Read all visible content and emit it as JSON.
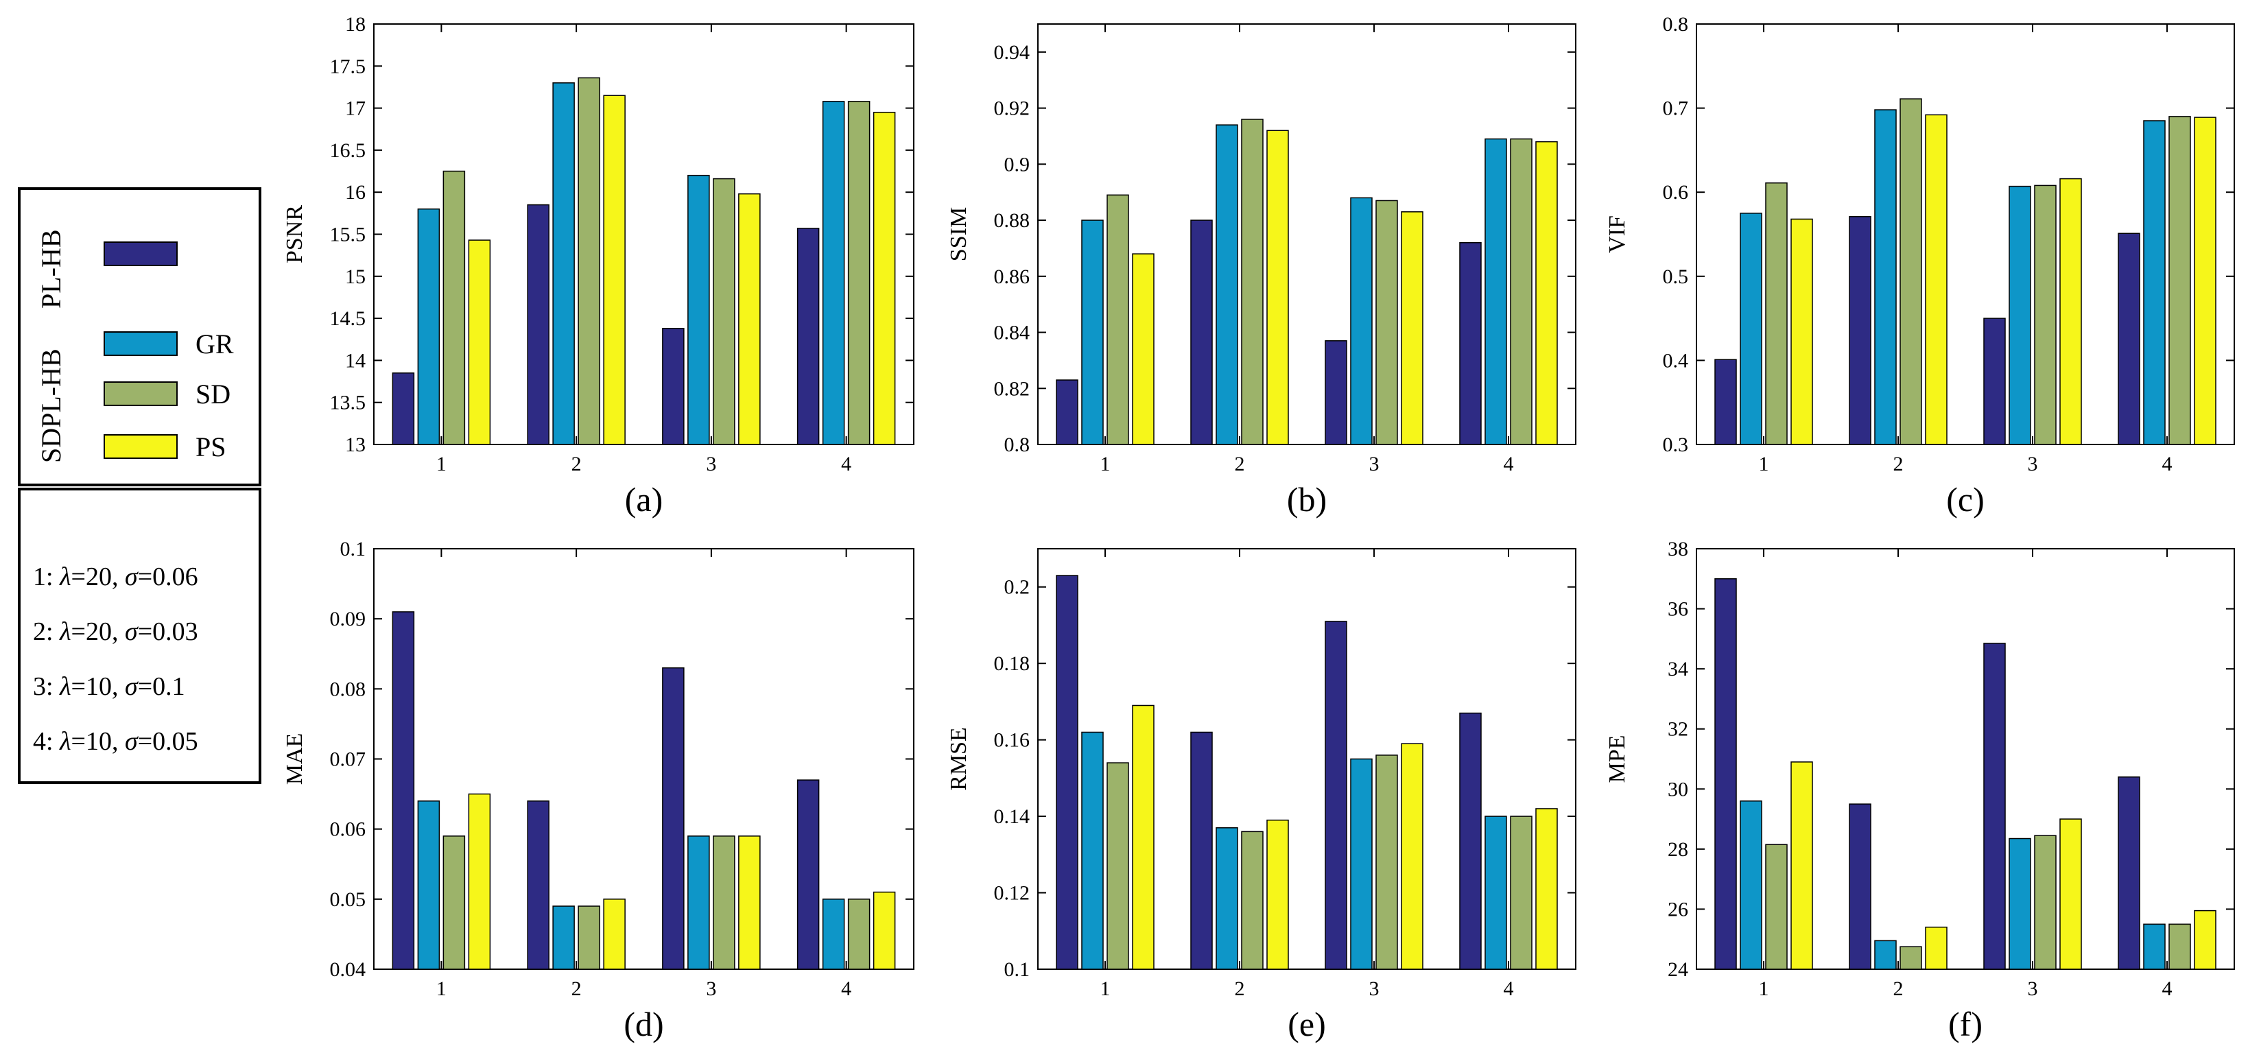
{
  "legend": {
    "entries": [
      {
        "name": "PL-HB",
        "color": "#2e2b84"
      },
      {
        "name": "GR",
        "color": "#0e96c8"
      },
      {
        "name": "SD",
        "color": "#9cb36a"
      },
      {
        "name": "PS",
        "color": "#f6f61a"
      }
    ],
    "group_label": "SDPL-HB"
  },
  "params": {
    "items": [
      {
        "prefix": "1: ",
        "lam": "λ",
        "lamval": "=20, ",
        "sig": "σ",
        "sigval": "=0.06"
      },
      {
        "prefix": "2: ",
        "lam": "λ",
        "lamval": "=20, ",
        "sig": "σ",
        "sigval": "=0.03"
      },
      {
        "prefix": "3: ",
        "lam": "λ",
        "lamval": "=10, ",
        "sig": "σ",
        "sigval": "=0.1"
      },
      {
        "prefix": "4: ",
        "lam": "λ",
        "lamval": "=10, ",
        "sig": "σ",
        "sigval": "=0.05"
      }
    ]
  },
  "chart_data": [
    {
      "type": "bar",
      "caption": "(a)",
      "ylabel": "PSNR",
      "categories": [
        "1",
        "2",
        "3",
        "4"
      ],
      "ylim": [
        13,
        18
      ],
      "yticks": [
        "13",
        "13.5",
        "14",
        "14.5",
        "15",
        "15.5",
        "16",
        "16.5",
        "17",
        "17.5",
        "18"
      ],
      "series": [
        {
          "name": "PL-HB",
          "values": [
            13.85,
            15.85,
            14.38,
            15.57
          ]
        },
        {
          "name": "GR",
          "values": [
            15.8,
            17.3,
            16.2,
            17.08
          ]
        },
        {
          "name": "SD",
          "values": [
            16.25,
            17.36,
            16.16,
            17.08
          ]
        },
        {
          "name": "PS",
          "values": [
            15.43,
            17.15,
            15.98,
            16.95
          ]
        }
      ]
    },
    {
      "type": "bar",
      "caption": "(b)",
      "ylabel": "SSIM",
      "categories": [
        "1",
        "2",
        "3",
        "4"
      ],
      "ylim": [
        0.8,
        0.95
      ],
      "yticks": [
        "0.8",
        "0.82",
        "0.84",
        "0.86",
        "0.88",
        "0.9",
        "0.92",
        "0.94"
      ],
      "series": [
        {
          "name": "PL-HB",
          "values": [
            0.823,
            0.88,
            0.837,
            0.872
          ]
        },
        {
          "name": "GR",
          "values": [
            0.88,
            0.914,
            0.888,
            0.909
          ]
        },
        {
          "name": "SD",
          "values": [
            0.889,
            0.916,
            0.887,
            0.909
          ]
        },
        {
          "name": "PS",
          "values": [
            0.868,
            0.912,
            0.883,
            0.908
          ]
        }
      ]
    },
    {
      "type": "bar",
      "caption": "(c)",
      "ylabel": "VIF",
      "categories": [
        "1",
        "2",
        "3",
        "4"
      ],
      "ylim": [
        0.3,
        0.8
      ],
      "yticks": [
        "0.3",
        "0.4",
        "0.5",
        "0.6",
        "0.7",
        "0.8"
      ],
      "series": [
        {
          "name": "PL-HB",
          "values": [
            0.401,
            0.571,
            0.45,
            0.551
          ]
        },
        {
          "name": "GR",
          "values": [
            0.575,
            0.698,
            0.607,
            0.685
          ]
        },
        {
          "name": "SD",
          "values": [
            0.611,
            0.711,
            0.608,
            0.69
          ]
        },
        {
          "name": "PS",
          "values": [
            0.568,
            0.692,
            0.616,
            0.689
          ]
        }
      ]
    },
    {
      "type": "bar",
      "caption": "(d)",
      "ylabel": "MAE",
      "categories": [
        "1",
        "2",
        "3",
        "4"
      ],
      "ylim": [
        0.04,
        0.1
      ],
      "yticks": [
        "0.04",
        "0.05",
        "0.06",
        "0.07",
        "0.08",
        "0.09",
        "0.1"
      ],
      "series": [
        {
          "name": "PL-HB",
          "values": [
            0.091,
            0.064,
            0.083,
            0.067
          ]
        },
        {
          "name": "GR",
          "values": [
            0.064,
            0.049,
            0.059,
            0.05
          ]
        },
        {
          "name": "SD",
          "values": [
            0.059,
            0.049,
            0.059,
            0.05
          ]
        },
        {
          "name": "PS",
          "values": [
            0.065,
            0.05,
            0.059,
            0.051
          ]
        }
      ]
    },
    {
      "type": "bar",
      "caption": "(e)",
      "ylabel": "RMSE",
      "categories": [
        "1",
        "2",
        "3",
        "4"
      ],
      "ylim": [
        0.1,
        0.21
      ],
      "yticks": [
        "0.1",
        "0.12",
        "0.14",
        "0.16",
        "0.18",
        "0.2"
      ],
      "series": [
        {
          "name": "PL-HB",
          "values": [
            0.203,
            0.162,
            0.191,
            0.167
          ]
        },
        {
          "name": "GR",
          "values": [
            0.162,
            0.137,
            0.155,
            0.14
          ]
        },
        {
          "name": "SD",
          "values": [
            0.154,
            0.136,
            0.156,
            0.14
          ]
        },
        {
          "name": "PS",
          "values": [
            0.169,
            0.139,
            0.159,
            0.142
          ]
        }
      ]
    },
    {
      "type": "bar",
      "caption": "(f)",
      "ylabel": "MPE",
      "categories": [
        "1",
        "2",
        "3",
        "4"
      ],
      "ylim": [
        24,
        38
      ],
      "yticks": [
        "24",
        "26",
        "28",
        "30",
        "32",
        "34",
        "36",
        "38"
      ],
      "series": [
        {
          "name": "PL-HB",
          "values": [
            37.0,
            29.5,
            34.85,
            30.4
          ]
        },
        {
          "name": "GR",
          "values": [
            29.6,
            24.95,
            28.35,
            25.5
          ]
        },
        {
          "name": "SD",
          "values": [
            28.15,
            24.75,
            28.45,
            25.5
          ]
        },
        {
          "name": "PS",
          "values": [
            30.9,
            25.4,
            29.0,
            25.95
          ]
        }
      ]
    }
  ]
}
